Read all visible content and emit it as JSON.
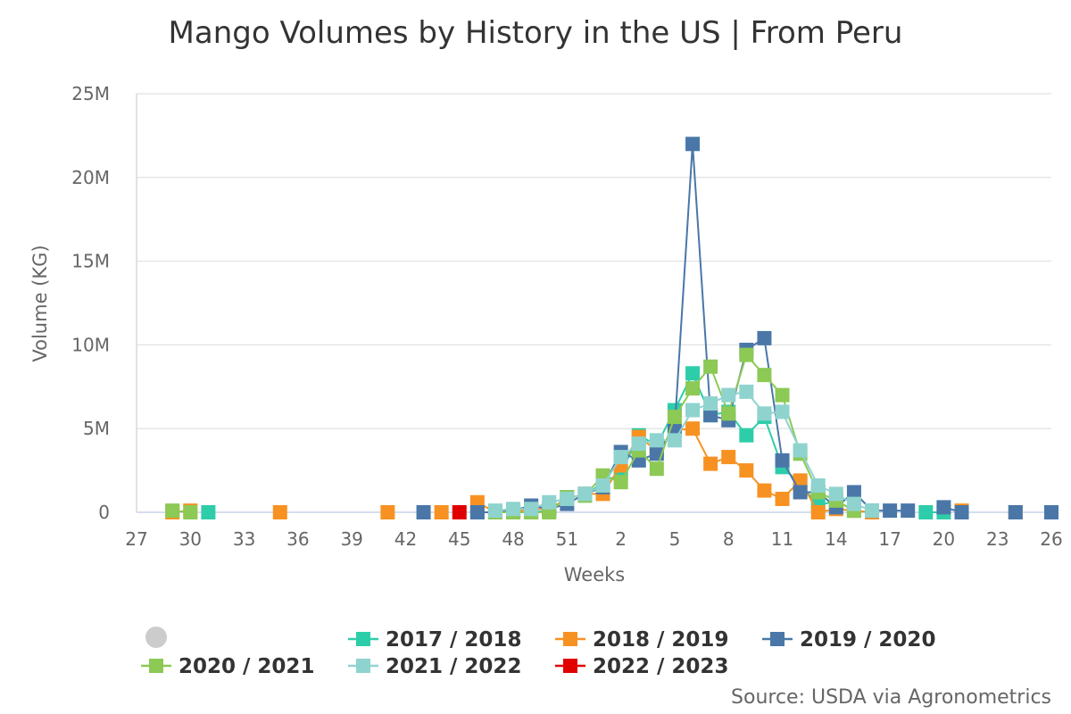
{
  "chart_data": {
    "type": "line",
    "title": "Mango Volumes by History in the US | From Peru",
    "xlabel": "Weeks",
    "ylabel": "Volume (KG)",
    "source": "Source: USDA via Agronometrics",
    "x_tick_labels": [
      "27",
      "30",
      "33",
      "36",
      "39",
      "42",
      "45",
      "48",
      "51",
      "2",
      "5",
      "8",
      "11",
      "14",
      "17",
      "20",
      "23",
      "26"
    ],
    "y_tick_labels": [
      "0",
      "5M",
      "10M",
      "15M",
      "20M",
      "25M"
    ],
    "ylim": [
      0,
      25000000
    ],
    "grid": true,
    "legend_position": "bottom",
    "weeks": [
      "27",
      "28",
      "29",
      "30",
      "31",
      "32",
      "33",
      "34",
      "35",
      "36",
      "37",
      "38",
      "39",
      "40",
      "41",
      "42",
      "43",
      "44",
      "45",
      "46",
      "47",
      "48",
      "49",
      "50",
      "51",
      "52",
      "1",
      "2",
      "3",
      "4",
      "5",
      "6",
      "7",
      "8",
      "9",
      "10",
      "11",
      "12",
      "13",
      "14",
      "15",
      "16",
      "17",
      "18",
      "19",
      "20",
      "21",
      "22",
      "23",
      "24",
      "25",
      "26"
    ],
    "series": [
      {
        "name": "2017 / 2018",
        "color": "#2ecdaa",
        "values": [
          null,
          null,
          null,
          null,
          0,
          null,
          null,
          null,
          null,
          null,
          null,
          null,
          null,
          null,
          null,
          null,
          null,
          null,
          null,
          0,
          0,
          0,
          0,
          100000,
          900000,
          1000000,
          1800000,
          2300000,
          4600000,
          4000000,
          6100000,
          8300000,
          5800000,
          6000000,
          4600000,
          5700000,
          2700000,
          1700000,
          400000,
          700000,
          100000,
          0,
          null,
          null,
          0,
          0,
          null,
          null,
          null,
          null,
          null,
          null
        ]
      },
      {
        "name": "2018 / 2019",
        "color": "#f79222",
        "values": [
          null,
          null,
          0,
          100000,
          null,
          null,
          null,
          null,
          0,
          null,
          null,
          null,
          null,
          null,
          0,
          null,
          null,
          0,
          null,
          600000,
          0,
          0,
          200000,
          200000,
          800000,
          1100000,
          1100000,
          2800000,
          4500000,
          3700000,
          4900000,
          5000000,
          2900000,
          3300000,
          2500000,
          1300000,
          800000,
          1900000,
          0,
          200000,
          100000,
          0,
          null,
          null,
          null,
          null,
          100000,
          null,
          null,
          0,
          null,
          null
        ]
      },
      {
        "name": "2019 / 2020",
        "color": "#4a77a8",
        "values": [
          null,
          null,
          null,
          null,
          null,
          null,
          null,
          null,
          null,
          null,
          null,
          null,
          null,
          null,
          null,
          null,
          0,
          null,
          null,
          0,
          0,
          100000,
          400000,
          200000,
          500000,
          1100000,
          1500000,
          3600000,
          3100000,
          3500000,
          5000000,
          22000000,
          5800000,
          5500000,
          9700000,
          10400000,
          3100000,
          1200000,
          1200000,
          300000,
          1200000,
          100000,
          100000,
          100000,
          null,
          300000,
          0,
          null,
          null,
          0,
          null,
          0
        ]
      },
      {
        "name": "2020 / 2021",
        "color": "#8cc955",
        "values": [
          null,
          null,
          100000,
          0,
          null,
          null,
          null,
          null,
          null,
          null,
          null,
          null,
          null,
          null,
          null,
          null,
          null,
          null,
          null,
          null,
          0,
          0,
          0,
          0,
          900000,
          1000000,
          2200000,
          1800000,
          3700000,
          2600000,
          5700000,
          7400000,
          8700000,
          5900000,
          9400000,
          8200000,
          7000000,
          3500000,
          1200000,
          700000,
          100000,
          null,
          null,
          null,
          null,
          null,
          null,
          null,
          null,
          null,
          null,
          null
        ]
      },
      {
        "name": "2021 / 2022",
        "color": "#8fd3cf",
        "values": [
          null,
          null,
          null,
          null,
          null,
          null,
          null,
          null,
          null,
          null,
          null,
          null,
          null,
          null,
          null,
          null,
          null,
          null,
          null,
          null,
          100000,
          200000,
          200000,
          600000,
          800000,
          1100000,
          1600000,
          3300000,
          4100000,
          4300000,
          4300000,
          6100000,
          6500000,
          7000000,
          7200000,
          5900000,
          6000000,
          3700000,
          1600000,
          1100000,
          500000,
          100000,
          null,
          null,
          null,
          null,
          null,
          null,
          null,
          null,
          null,
          null
        ]
      },
      {
        "name": "2022 / 2023",
        "color": "#e00000",
        "values": [
          null,
          null,
          null,
          null,
          null,
          null,
          null,
          null,
          null,
          null,
          null,
          null,
          null,
          null,
          null,
          null,
          null,
          null,
          0,
          null,
          null,
          null,
          null,
          null,
          null,
          null,
          null,
          null,
          null,
          null,
          null,
          null,
          null,
          null,
          null,
          null,
          null,
          null,
          null,
          null,
          null,
          null,
          null,
          null,
          null,
          null,
          null,
          null,
          null,
          null,
          null,
          null
        ]
      }
    ]
  }
}
